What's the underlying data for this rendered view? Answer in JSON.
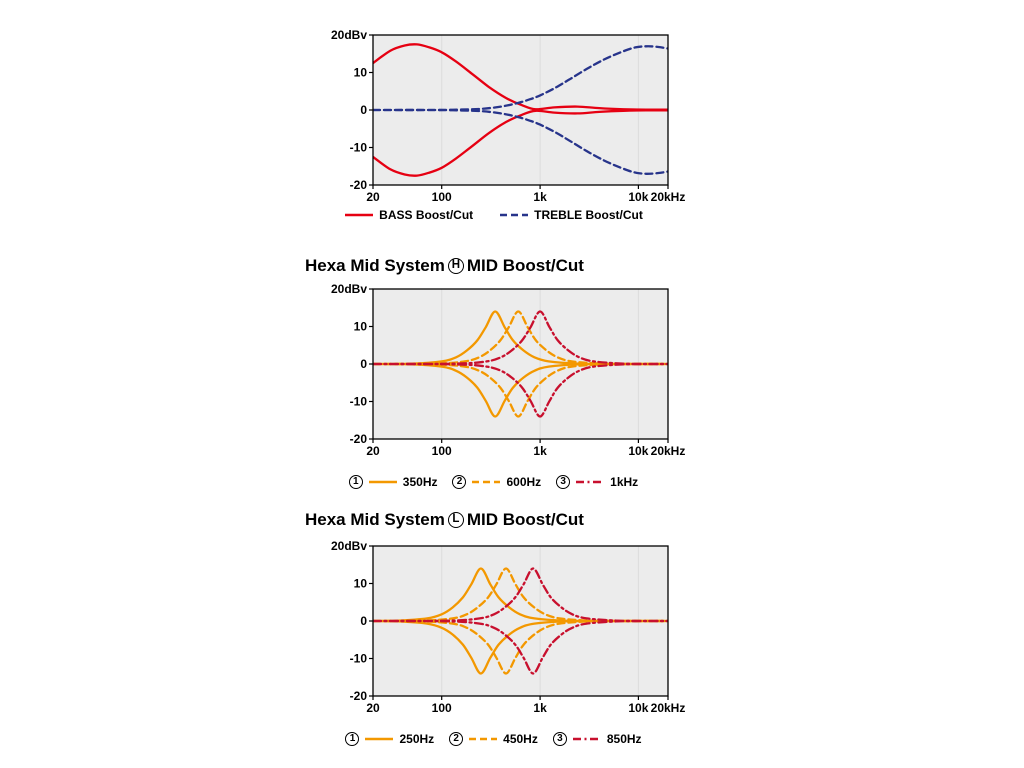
{
  "styles": {
    "plot_bg": "#ececec",
    "grid_color": "#dddddd",
    "axis_color": "#000000",
    "bass_red": "#e60012",
    "treble_blue": "#27348b",
    "mid_orange": "#f39800",
    "mid_crimson": "#c8102e"
  },
  "chart_data": [
    {
      "type": "line",
      "id": "bass-treble-boost-cut",
      "title": null,
      "x_axis": {
        "scale": "log",
        "min": 20,
        "max": 20000,
        "tick_values": [
          20,
          100,
          1000,
          10000,
          20000
        ],
        "tick_labels": [
          "20",
          "100",
          "1k",
          "10k",
          "20kHz"
        ],
        "grid_values": [
          100,
          1000,
          10000
        ]
      },
      "y_axis": {
        "min": -20,
        "max": 20,
        "tick_values": [
          20,
          10,
          0,
          -10,
          -20
        ],
        "tick_labels": [
          "20dBv",
          "10",
          "0",
          "-10",
          "-20"
        ]
      },
      "series": [
        {
          "name": "BASS Boost/Cut",
          "color": "#e60012",
          "style": "solid",
          "mirrored": true,
          "points": [
            [
              20,
              12.5
            ],
            [
              30,
              15.8
            ],
            [
              42,
              17.2
            ],
            [
              56,
              17.5
            ],
            [
              75,
              16.7
            ],
            [
              100,
              15.4
            ],
            [
              140,
              12.9
            ],
            [
              200,
              9.8
            ],
            [
              300,
              6.2
            ],
            [
              450,
              3.2
            ],
            [
              650,
              1.3
            ],
            [
              900,
              0.2
            ],
            [
              1400,
              0.7
            ],
            [
              2400,
              0.9
            ],
            [
              4000,
              0.5
            ],
            [
              7000,
              0.2
            ],
            [
              12000,
              0.1
            ],
            [
              20000,
              0.1
            ]
          ]
        },
        {
          "name": "TREBLE Boost/Cut",
          "color": "#27348b",
          "style": "dashed",
          "mirrored": true,
          "points": [
            [
              20,
              0
            ],
            [
              80,
              0
            ],
            [
              150,
              0.1
            ],
            [
              250,
              0.3
            ],
            [
              400,
              0.9
            ],
            [
              600,
              1.9
            ],
            [
              800,
              2.9
            ],
            [
              1000,
              3.9
            ],
            [
              1400,
              5.8
            ],
            [
              2000,
              8.2
            ],
            [
              3000,
              11
            ],
            [
              4500,
              13.5
            ],
            [
              6500,
              15.3
            ],
            [
              9000,
              16.6
            ],
            [
              12000,
              17
            ],
            [
              16000,
              16.8
            ],
            [
              20000,
              16.4
            ]
          ]
        }
      ],
      "legend": [
        {
          "marker": null,
          "label": "BASS Boost/Cut"
        },
        {
          "marker": null,
          "label": "TREBLE Boost/Cut"
        }
      ]
    },
    {
      "type": "line",
      "id": "hexa-mid-system-h",
      "title": {
        "prefix": "Hexa Mid System",
        "circle": "H",
        "suffix": "MID Boost/Cut"
      },
      "x_axis": {
        "scale": "log",
        "min": 20,
        "max": 20000,
        "tick_values": [
          20,
          100,
          1000,
          10000,
          20000
        ],
        "tick_labels": [
          "20",
          "100",
          "1k",
          "10k",
          "20kHz"
        ],
        "grid_values": [
          100,
          1000,
          10000
        ]
      },
      "y_axis": {
        "min": -20,
        "max": 20,
        "tick_values": [
          20,
          10,
          0,
          -10,
          -20
        ],
        "tick_labels": [
          "20dBv",
          "10",
          "0",
          "-10",
          "-20"
        ]
      },
      "series": [
        {
          "name": "350Hz",
          "color": "#f39800",
          "style": "solid",
          "mirrored": true,
          "points": [
            [
              20,
              0
            ],
            [
              50,
              0.1
            ],
            [
              100,
              0.7
            ],
            [
              140,
              1.8
            ],
            [
              180,
              3.6
            ],
            [
              230,
              6.3
            ],
            [
              280,
              9.8
            ],
            [
              350,
              14
            ],
            [
              437,
              9.8
            ],
            [
              530,
              6.3
            ],
            [
              680,
              3.6
            ],
            [
              875,
              1.8
            ],
            [
              1225,
              0.7
            ],
            [
              2450,
              0.1
            ],
            [
              6000,
              0
            ],
            [
              20000,
              0
            ]
          ]
        },
        {
          "name": "600Hz",
          "color": "#f39800",
          "style": "dashed",
          "mirrored": true,
          "points": [
            [
              20,
              0
            ],
            [
              86,
              0.1
            ],
            [
              171,
              0.7
            ],
            [
              240,
              1.8
            ],
            [
              309,
              3.6
            ],
            [
              394,
              6.3
            ],
            [
              480,
              9.8
            ],
            [
              600,
              14
            ],
            [
              749,
              9.8
            ],
            [
              908,
              6.3
            ],
            [
              1166,
              3.6
            ],
            [
              1500,
              1.8
            ],
            [
              2100,
              0.7
            ],
            [
              4200,
              0.1
            ],
            [
              9000,
              0
            ],
            [
              20000,
              0
            ]
          ]
        },
        {
          "name": "1kHz",
          "color": "#c8102e",
          "style": "dashdot",
          "mirrored": true,
          "points": [
            [
              20,
              0
            ],
            [
              143,
              0.1
            ],
            [
              286,
              0.7
            ],
            [
              400,
              1.8
            ],
            [
              514,
              3.6
            ],
            [
              657,
              6.3
            ],
            [
              800,
              9.8
            ],
            [
              1000,
              14
            ],
            [
              1249,
              9.8
            ],
            [
              1514,
              6.3
            ],
            [
              1943,
              3.6
            ],
            [
              2500,
              1.8
            ],
            [
              3500,
              0.7
            ],
            [
              7000,
              0.1
            ],
            [
              13000,
              0
            ],
            [
              20000,
              0
            ]
          ]
        }
      ],
      "legend": [
        {
          "marker": "1",
          "label": "350Hz"
        },
        {
          "marker": "2",
          "label": "600Hz"
        },
        {
          "marker": "3",
          "label": "1kHz"
        }
      ]
    },
    {
      "type": "line",
      "id": "hexa-mid-system-l",
      "title": {
        "prefix": "Hexa Mid System",
        "circle": "L",
        "suffix": "MID Boost/Cut"
      },
      "x_axis": {
        "scale": "log",
        "min": 20,
        "max": 20000,
        "tick_values": [
          20,
          100,
          1000,
          10000,
          20000
        ],
        "tick_labels": [
          "20",
          "100",
          "1k",
          "10k",
          "20kHz"
        ],
        "grid_values": [
          100,
          1000,
          10000
        ]
      },
      "y_axis": {
        "min": -20,
        "max": 20,
        "tick_values": [
          20,
          10,
          0,
          -10,
          -20
        ],
        "tick_labels": [
          "20dBv",
          "10",
          "0",
          "-10",
          "-20"
        ]
      },
      "series": [
        {
          "name": "250Hz",
          "color": "#f39800",
          "style": "solid",
          "mirrored": true,
          "points": [
            [
              20,
              0
            ],
            [
              36,
              0.1
            ],
            [
              71,
              0.7
            ],
            [
              100,
              1.8
            ],
            [
              129,
              3.6
            ],
            [
              164,
              6.3
            ],
            [
              200,
              9.8
            ],
            [
              250,
              14
            ],
            [
              312,
              9.8
            ],
            [
              379,
              6.3
            ],
            [
              486,
              3.6
            ],
            [
              625,
              1.8
            ],
            [
              875,
              0.7
            ],
            [
              1750,
              0.1
            ],
            [
              4500,
              0
            ],
            [
              20000,
              0
            ]
          ]
        },
        {
          "name": "450Hz",
          "color": "#f39800",
          "style": "dashed",
          "mirrored": true,
          "points": [
            [
              20,
              0
            ],
            [
              64,
              0.1
            ],
            [
              129,
              0.7
            ],
            [
              180,
              1.8
            ],
            [
              231,
              3.6
            ],
            [
              296,
              6.3
            ],
            [
              360,
              9.8
            ],
            [
              450,
              14
            ],
            [
              562,
              9.8
            ],
            [
              681,
              6.3
            ],
            [
              874,
              3.6
            ],
            [
              1125,
              1.8
            ],
            [
              1575,
              0.7
            ],
            [
              3150,
              0.1
            ],
            [
              7000,
              0
            ],
            [
              20000,
              0
            ]
          ]
        },
        {
          "name": "850Hz",
          "color": "#c8102e",
          "style": "dashdot",
          "mirrored": true,
          "points": [
            [
              20,
              0
            ],
            [
              121,
              0.1
            ],
            [
              243,
              0.7
            ],
            [
              340,
              1.8
            ],
            [
              437,
              3.6
            ],
            [
              559,
              6.3
            ],
            [
              680,
              9.8
            ],
            [
              850,
              14
            ],
            [
              1062,
              9.8
            ],
            [
              1287,
              6.3
            ],
            [
              1651,
              3.6
            ],
            [
              2125,
              1.8
            ],
            [
              2975,
              0.7
            ],
            [
              5950,
              0.1
            ],
            [
              12000,
              0
            ],
            [
              20000,
              0
            ]
          ]
        }
      ],
      "legend": [
        {
          "marker": "1",
          "label": "250Hz"
        },
        {
          "marker": "2",
          "label": "450Hz"
        },
        {
          "marker": "3",
          "label": "850Hz"
        }
      ]
    }
  ]
}
